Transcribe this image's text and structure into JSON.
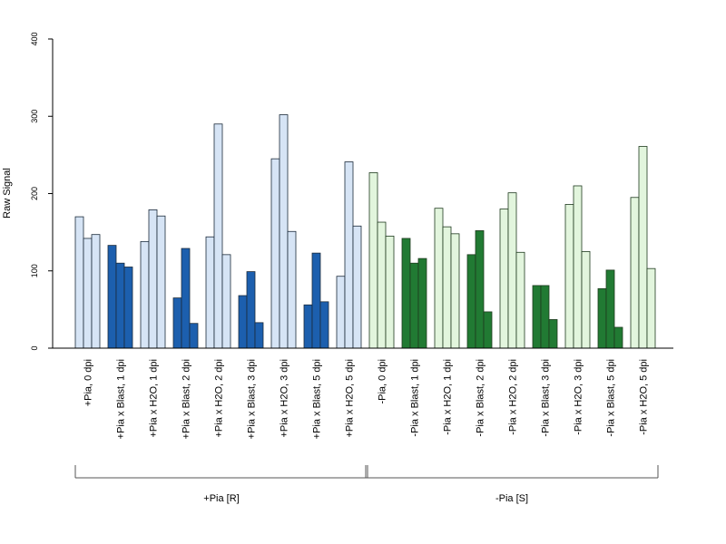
{
  "chart_data": {
    "type": "bar",
    "ylabel": "Raw Signal",
    "ylim": [
      0,
      400
    ],
    "yticks": [
      0,
      100,
      200,
      300,
      400
    ],
    "grid": false,
    "bars_per_category": 3,
    "categories": [
      "+Pia, 0 dpi",
      "+Pia x Blast, 1 dpi",
      "+Pia x H2O, 1 dpi",
      "+Pia x Blast, 2 dpi",
      "+Pia x H2O, 2 dpi",
      "+Pia x Blast, 3 dpi",
      "+Pia x H2O, 3 dpi",
      "+Pia x Blast, 5 dpi",
      "+Pia x H2O, 5 dpi",
      "-Pia, 0 dpi",
      "-Pia x Blast, 1 dpi",
      "-Pia x H2O, 1 dpi",
      "-Pia x Blast, 2 dpi",
      "-Pia x H2O, 2 dpi",
      "-Pia x Blast, 3 dpi",
      "-Pia x H2O, 3 dpi",
      "-Pia x Blast, 5 dpi",
      "-Pia x H2O, 5 dpi"
    ],
    "values": [
      [
        170,
        142,
        147
      ],
      [
        133,
        110,
        105
      ],
      [
        138,
        179,
        171
      ],
      [
        65,
        129,
        32
      ],
      [
        144,
        290,
        121
      ],
      [
        68,
        99,
        33
      ],
      [
        245,
        302,
        151
      ],
      [
        56,
        123,
        60
      ],
      [
        93,
        241,
        158
      ],
      [
        227,
        163,
        145
      ],
      [
        142,
        110,
        116
      ],
      [
        181,
        157,
        148
      ],
      [
        121,
        152,
        47
      ],
      [
        180,
        201,
        124
      ],
      [
        81,
        81,
        37
      ],
      [
        186,
        210,
        125
      ],
      [
        77,
        101,
        27
      ],
      [
        195,
        261,
        103
      ]
    ],
    "bar_colors": [
      "#d6e4f5",
      "#1c5fae",
      "#d6e4f5",
      "#1c5fae",
      "#d6e4f5",
      "#1c5fae",
      "#d6e4f5",
      "#1c5fae",
      "#d6e4f5",
      "#e2f5dd",
      "#217a33",
      "#e2f5dd",
      "#217a33",
      "#e2f5dd",
      "#217a33",
      "#e2f5dd",
      "#217a33",
      "#e2f5dd"
    ],
    "border_colors": [
      "#1b2a3a",
      "#1b2a3a",
      "#1b2a3a",
      "#1b2a3a",
      "#1b2a3a",
      "#1b2a3a",
      "#1b2a3a",
      "#1b2a3a",
      "#1b2a3a",
      "#1f3a1f",
      "#1f3a1f",
      "#1f3a1f",
      "#1f3a1f",
      "#1f3a1f",
      "#1f3a1f",
      "#1f3a1f",
      "#1f3a1f",
      "#1f3a1f"
    ],
    "groups": [
      {
        "label": "+Pia [R]",
        "first_category": 0,
        "last_category": 8
      },
      {
        "label": "-Pia [S]",
        "first_category": 9,
        "last_category": 17
      }
    ]
  }
}
